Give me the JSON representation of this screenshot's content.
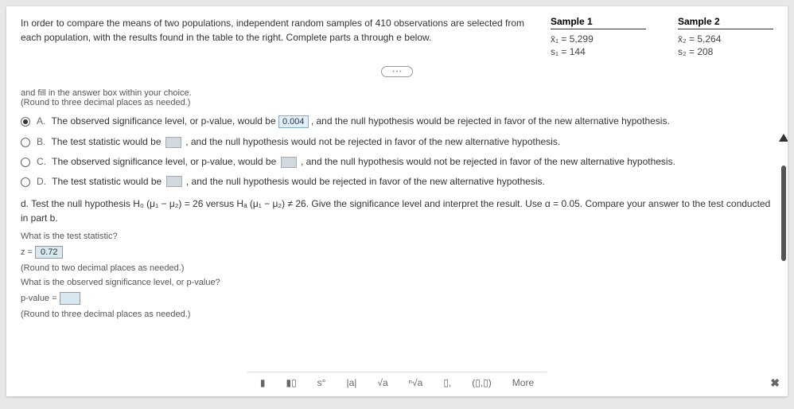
{
  "intro": "In order to compare the means of two populations, independent random samples of 410 observations are selected from each population, with the results found in the table to the right. Complete parts a through e below.",
  "samples": {
    "col1": {
      "title": "Sample 1",
      "r1": "x̄₁ = 5,299",
      "r2": "s₁ = 144"
    },
    "col2": {
      "title": "Sample 2",
      "r1": "x̄₂ = 5,264",
      "r2": "s₂ = 208"
    }
  },
  "note1": "and fill in the answer box within your choice.",
  "note2": "(Round to three decimal places as needed.)",
  "options": {
    "a": {
      "letter": "A.",
      "pre": "The observed significance level, or p-value, would be ",
      "val": "0.004",
      "post": " , and the null hypothesis would be rejected in favor of the new alternative hypothesis."
    },
    "b": {
      "letter": "B.",
      "pre": "The test statistic would be ",
      "post": " , and the null hypothesis would not be rejected in favor of the new alternative hypothesis."
    },
    "c": {
      "letter": "C.",
      "pre": "The observed significance level, or p-value, would be ",
      "post": " , and the null hypothesis would not be rejected in favor of the new alternative hypothesis."
    },
    "d": {
      "letter": "D.",
      "pre": "The test statistic would be ",
      "post": " , and the null hypothesis would be rejected in favor of the new alternative hypothesis."
    }
  },
  "partd": "d. Test the null hypothesis H₀  (μ₁ − μ₂) = 26 versus Hₐ  (μ₁ − μ₂) ≠ 26. Give the significance level and interpret the result. Use α = 0.05. Compare your answer to the test conducted in part b.",
  "q1": "What is the test statistic?",
  "ans1_label": "z = ",
  "ans1_val": "0.72",
  "round1": "(Round to two decimal places as needed.)",
  "q2": "What is the observed significance level, or p-value?",
  "ans2_label": "p-value = ",
  "round2": "(Round to three decimal places as needed.)",
  "toolbar": {
    "t1": "▮",
    "t2": "▮▯",
    "t3": "s°",
    "t4": "|a|",
    "t5": "√a",
    "t6": "ⁿ√a",
    "t7": "▯,",
    "t8": "(▯,▯)",
    "t9": "More"
  },
  "close": "✖"
}
